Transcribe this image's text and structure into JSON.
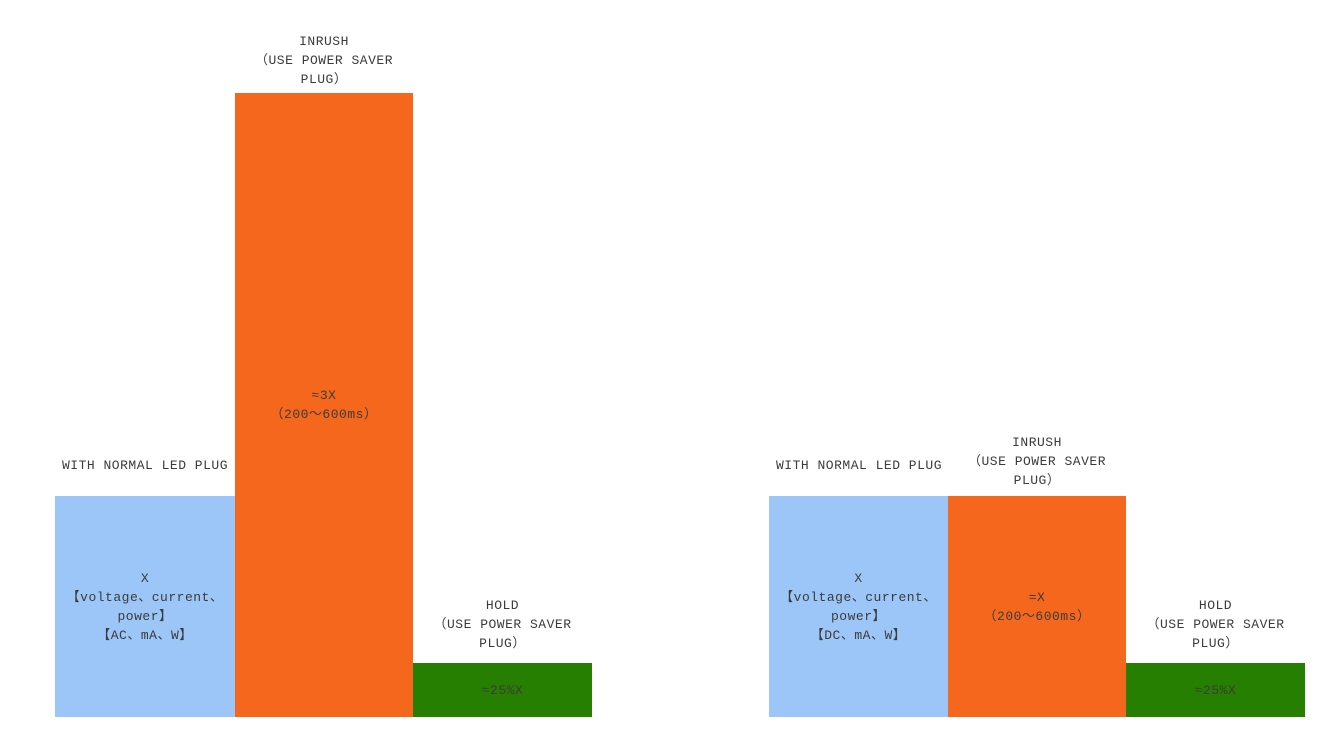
{
  "colors": {
    "normal_bar": "#9CC6F8",
    "inrush_bar": "#F6671E",
    "hold_bar": "#267F00",
    "label_text": "#3B3B3B"
  },
  "groups": [
    {
      "id": "AC",
      "bars": [
        {
          "key": "normal",
          "label_lines": [
            "WITH NORMAL LED PLUG"
          ],
          "value_lines": [
            "X",
            "【voltage、current、",
            "power】",
            "【AC、mA、W】"
          ]
        },
        {
          "key": "inrush",
          "label_lines": [
            "INRUSH",
            "（USE POWER SAVER",
            "PLUG）"
          ],
          "value_lines": [
            "≈3X",
            "（200～600ms）"
          ]
        },
        {
          "key": "hold",
          "label_lines": [
            "HOLD",
            "（USE POWER SAVER",
            "PLUG）"
          ],
          "value_lines": [
            "≈25%X"
          ]
        }
      ]
    },
    {
      "id": "DC",
      "bars": [
        {
          "key": "normal",
          "label_lines": [
            "WITH NORMAL LED PLUG"
          ],
          "value_lines": [
            "X",
            "【voltage、current、",
            "power】",
            "【DC、mA、W】"
          ]
        },
        {
          "key": "inrush",
          "label_lines": [
            "INRUSH",
            "（USE POWER SAVER",
            "PLUG）"
          ],
          "value_lines": [
            "=X",
            "（200～600ms）"
          ]
        },
        {
          "key": "hold",
          "label_lines": [
            "HOLD",
            "（USE POWER SAVER",
            "PLUG）"
          ],
          "value_lines": [
            "≈25%X"
          ]
        }
      ]
    }
  ],
  "chart_data": [
    {
      "type": "bar",
      "group": "AC",
      "categories": [
        "WITH NORMAL LED PLUG",
        "INRUSH（USE POWER SAVER PLUG）",
        "HOLD（USE POWER SAVER PLUG）"
      ],
      "values": [
        1,
        3,
        0.25
      ],
      "value_labels": [
        "X 【voltage、current、power】【AC、mA、W】",
        "≈3X（200～600ms）",
        "≈25%X"
      ],
      "bar_colors": [
        "#9CC6F8",
        "#F6671E",
        "#267F00"
      ],
      "ylim": [
        0,
        3
      ],
      "grid": false,
      "legend": false,
      "xlabel": "",
      "ylabel": ""
    },
    {
      "type": "bar",
      "group": "DC",
      "categories": [
        "WITH NORMAL LED PLUG",
        "INRUSH（USE POWER SAVER PLUG）",
        "HOLD（USE POWER SAVER PLUG）"
      ],
      "values": [
        1,
        1,
        0.25
      ],
      "value_labels": [
        "X 【voltage、current、power】【DC、mA、W】",
        "=X（200～600ms）",
        "≈25%X"
      ],
      "bar_colors": [
        "#9CC6F8",
        "#F6671E",
        "#267F00"
      ],
      "ylim": [
        0,
        3
      ],
      "grid": false,
      "legend": false,
      "xlabel": "",
      "ylabel": ""
    }
  ]
}
